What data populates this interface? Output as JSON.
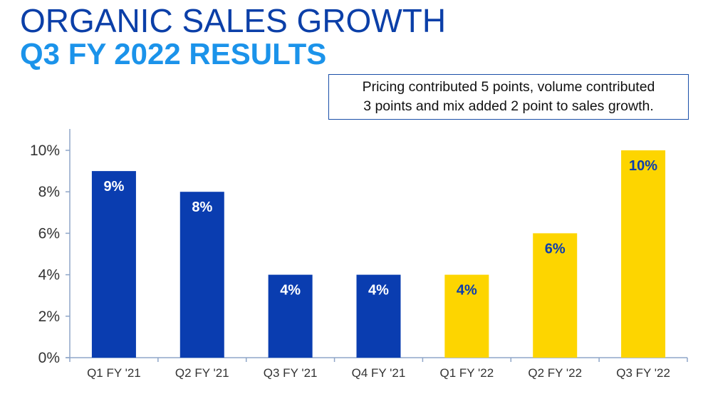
{
  "header": {
    "title": "ORGANIC SALES GROWTH",
    "subtitle": "Q3 FY 2022 RESULTS"
  },
  "callout": {
    "line1": "Pricing contributed 5 points, volume contributed",
    "line2": "3 points and mix added 2 point to sales growth."
  },
  "colors": {
    "fy21": "#0a3db0",
    "fy22": "#fdd500",
    "label_on_fy21": "#ffffff",
    "label_on_fy22": "#0a3db0",
    "axis": "#8fa6c8"
  },
  "chart_data": {
    "type": "bar",
    "categories": [
      "Q1 FY '21",
      "Q2 FY '21",
      "Q3 FY '21",
      "Q4 FY '21",
      "Q1 FY '22",
      "Q2 FY '22",
      "Q3 FY '22"
    ],
    "values": [
      9,
      8,
      4,
      4,
      4,
      6,
      10
    ],
    "data_labels": [
      "9%",
      "8%",
      "4%",
      "4%",
      "4%",
      "6%",
      "10%"
    ],
    "bar_groups": [
      "fy21",
      "fy21",
      "fy21",
      "fy21",
      "fy22",
      "fy22",
      "fy22"
    ],
    "y_ticks": [
      0,
      2,
      4,
      6,
      8,
      10
    ],
    "y_tick_labels": [
      "0%",
      "2%",
      "4%",
      "6%",
      "8%",
      "10%"
    ],
    "ylim": [
      0,
      10
    ],
    "grid": false,
    "legend": "none"
  }
}
